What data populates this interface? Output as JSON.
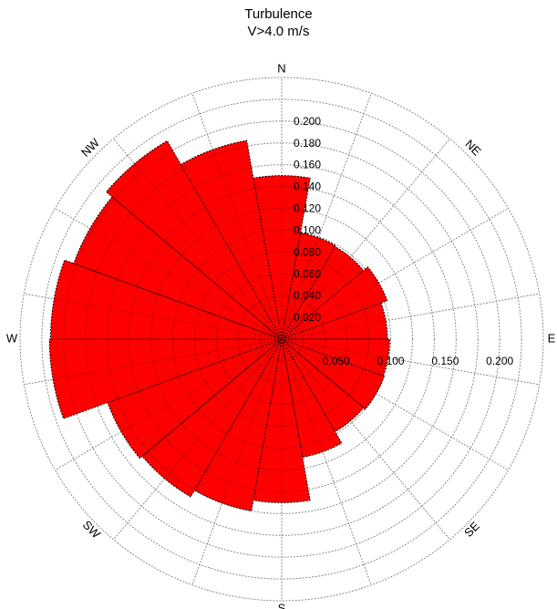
{
  "chart_data": {
    "type": "bar",
    "subtype": "polar-wind-rose",
    "title": "Turbulence",
    "subtitle": "V>4.0 m/s",
    "directions": [
      "N",
      "NE",
      "E",
      "SE",
      "S",
      "SW",
      "W",
      "NW"
    ],
    "sector_count": 18,
    "sector_width_deg": 20,
    "sector_centers_deg": [
      0,
      20,
      40,
      60,
      80,
      100,
      120,
      140,
      160,
      180,
      200,
      220,
      240,
      260,
      280,
      300,
      320,
      340
    ],
    "values": [
      0.15,
      0.099,
      0.098,
      0.103,
      0.097,
      0.099,
      0.1,
      0.098,
      0.11,
      0.15,
      0.16,
      0.167,
      0.17,
      0.213,
      0.212,
      0.203,
      0.21,
      0.185
    ],
    "vertical_tick_labels": [
      "0.020",
      "0.040",
      "0.060",
      "0.080",
      "0.100",
      "0.120",
      "0.140",
      "0.160",
      "0.180",
      "0.200"
    ],
    "horizontal_tick_labels": [
      "0.050",
      "0.100",
      "0.150",
      "0.200"
    ],
    "rlim": [
      0,
      0.24
    ],
    "ring_step": 0.02,
    "spoke_step_deg": 20,
    "bar_color": "#ff0000",
    "grid": true
  }
}
